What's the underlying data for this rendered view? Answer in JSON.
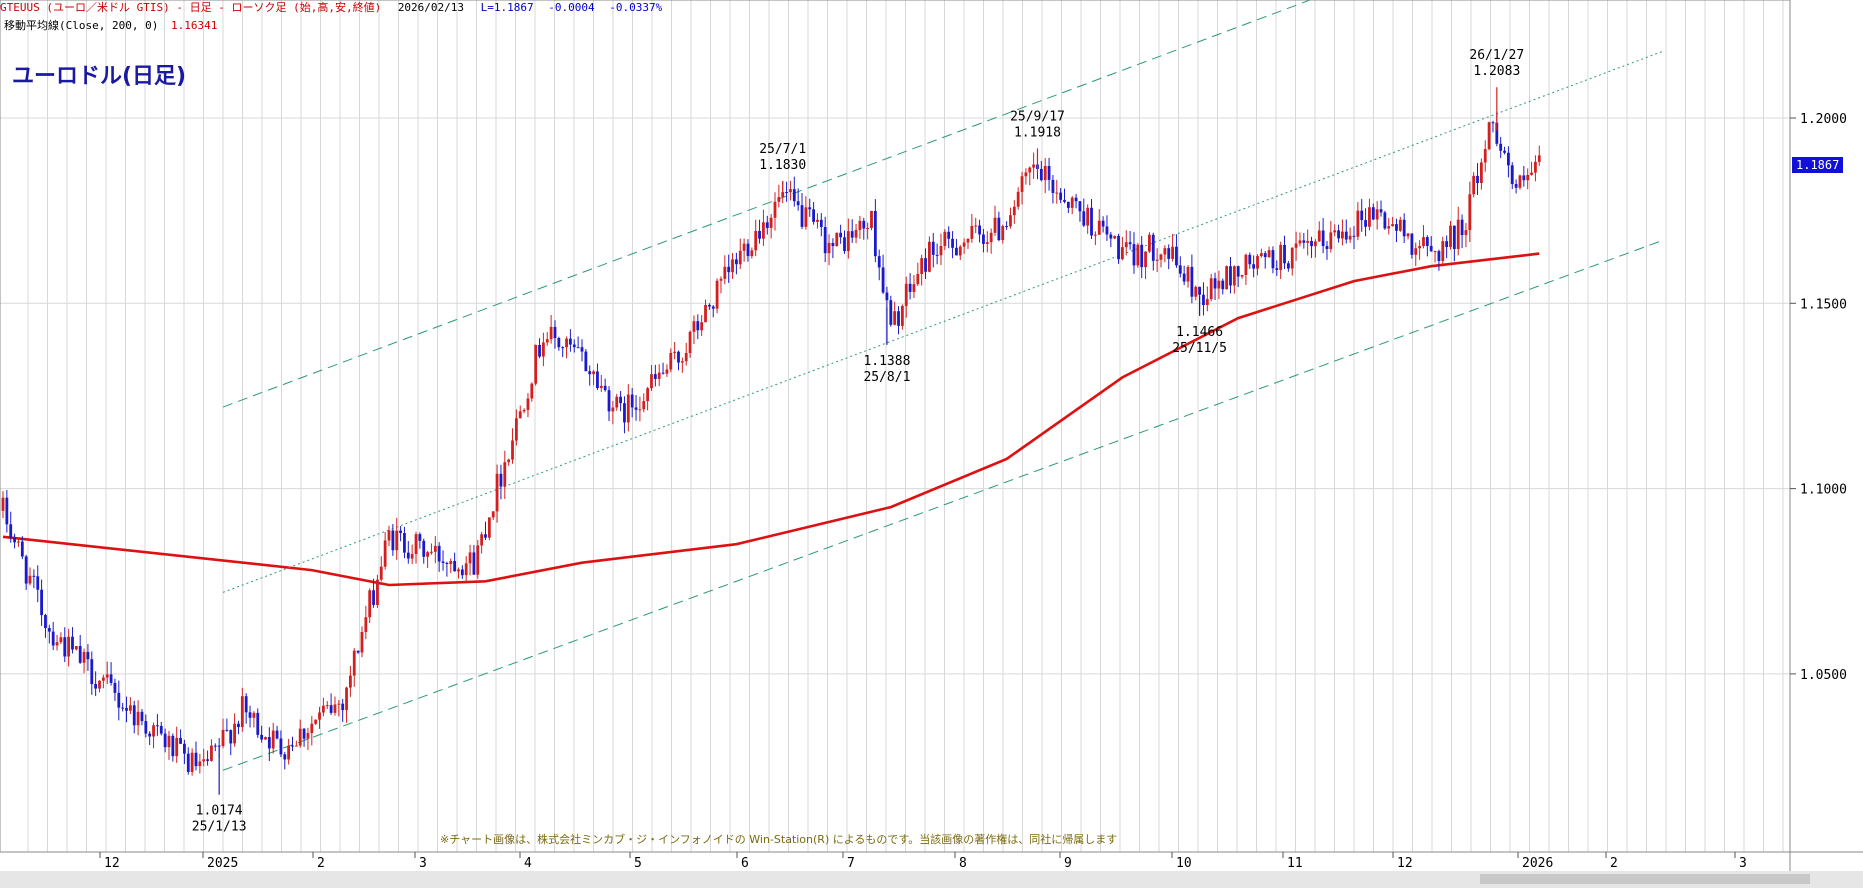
{
  "header": {
    "series_label": "GTEUUS (ユーロ／米ドル GTIS) - 日足 - ローソク足 (始,高,安,終値)",
    "date": "2026/02/13",
    "last": "L=1.1867",
    "change": "-0.0004",
    "change_pct": "-0.0337%"
  },
  "ma": {
    "label": "移動平均線(Close, 200, 0)",
    "value": "1.16341"
  },
  "title": "ユーロドル(日足)",
  "last_badge": "1.1867",
  "copyright": "※チャート画像は、株式会社ミンカブ・ジ・インフォノイドの Win-Station(R) によるものです。当該画像の著作権は、同社に帰属します",
  "colors": {
    "up": "#d22020",
    "down": "#1a1acc",
    "ma": "#dd1111",
    "channel": "#2a9a7a",
    "grid": "#d8d8d8"
  },
  "chart_data": {
    "type": "candlestick",
    "x_ticks": [
      "12",
      "2025",
      "2",
      "3",
      "4",
      "5",
      "6",
      "7",
      "8",
      "9",
      "10",
      "11",
      "12",
      "2026",
      "2",
      "3"
    ],
    "y_ticks": [
      "1.0500",
      "1.1000",
      "1.1500",
      "1.2000"
    ],
    "y_range": [
      1.005,
      1.225
    ],
    "anchors": [
      {
        "day": 0,
        "price": 1.094
      },
      {
        "day": 12,
        "price": 1.062
      },
      {
        "day": 30,
        "price": 1.043
      },
      {
        "day": 48,
        "price": 1.026
      },
      {
        "day": 52,
        "price": 1.024
      },
      {
        "day": 62,
        "price": 1.04
      },
      {
        "day": 72,
        "price": 1.03
      },
      {
        "day": 88,
        "price": 1.043
      },
      {
        "day": 100,
        "price": 1.087
      },
      {
        "day": 112,
        "price": 1.082
      },
      {
        "day": 122,
        "price": 1.08
      },
      {
        "day": 140,
        "price": 1.142
      },
      {
        "day": 150,
        "price": 1.135
      },
      {
        "day": 160,
        "price": 1.12
      },
      {
        "day": 175,
        "price": 1.135
      },
      {
        "day": 192,
        "price": 1.165
      },
      {
        "day": 202,
        "price": 1.179
      },
      {
        "day": 215,
        "price": 1.165
      },
      {
        "day": 225,
        "price": 1.172
      },
      {
        "day": 230,
        "price": 1.143
      },
      {
        "day": 240,
        "price": 1.164
      },
      {
        "day": 258,
        "price": 1.17
      },
      {
        "day": 267,
        "price": 1.186
      },
      {
        "day": 278,
        "price": 1.176
      },
      {
        "day": 292,
        "price": 1.162
      },
      {
        "day": 300,
        "price": 1.166
      },
      {
        "day": 310,
        "price": 1.152
      },
      {
        "day": 322,
        "price": 1.16
      },
      {
        "day": 338,
        "price": 1.164
      },
      {
        "day": 355,
        "price": 1.175
      },
      {
        "day": 370,
        "price": 1.163
      },
      {
        "day": 378,
        "price": 1.17
      },
      {
        "day": 386,
        "price": 1.2
      },
      {
        "day": 392,
        "price": 1.18
      },
      {
        "day": 398,
        "price": 1.1867
      }
    ],
    "moving_average_200": [
      {
        "day": 0,
        "price": 1.087
      },
      {
        "day": 80,
        "price": 1.078
      },
      {
        "day": 100,
        "price": 1.074
      },
      {
        "day": 125,
        "price": 1.075
      },
      {
        "day": 150,
        "price": 1.08
      },
      {
        "day": 190,
        "price": 1.085
      },
      {
        "day": 230,
        "price": 1.095
      },
      {
        "day": 260,
        "price": 1.108
      },
      {
        "day": 290,
        "price": 1.13
      },
      {
        "day": 320,
        "price": 1.146
      },
      {
        "day": 350,
        "price": 1.156
      },
      {
        "day": 370,
        "price": 1.16
      },
      {
        "day": 398,
        "price": 1.1634
      }
    ],
    "channel_lines": [
      {
        "style": "dashed",
        "from": {
          "day": 57,
          "price": 1.122
        },
        "to": {
          "day": 398,
          "price": 1.255
        }
      },
      {
        "style": "dotted",
        "from": {
          "day": 57,
          "price": 1.072
        },
        "to": {
          "day": 430,
          "price": 1.218
        }
      },
      {
        "style": "dashed",
        "from": {
          "day": 57,
          "price": 1.024
        },
        "to": {
          "day": 430,
          "price": 1.167
        }
      }
    ],
    "annotations": [
      {
        "date": "25/1/13",
        "price": "1.0174",
        "day": 56,
        "value": 1.0174,
        "position": "below"
      },
      {
        "date": "25/7/1",
        "price": "1.1830",
        "day": 202,
        "value": 1.183,
        "position": "above"
      },
      {
        "date": "25/8/1",
        "price": "1.1388",
        "day": 229,
        "value": 1.1388,
        "position": "below"
      },
      {
        "date": "25/9/17",
        "price": "1.1918",
        "day": 268,
        "value": 1.1918,
        "position": "above"
      },
      {
        "date": "25/11/5",
        "price": "1.1466",
        "day": 310,
        "value": 1.1466,
        "position": "below"
      },
      {
        "date": "26/1/27",
        "price": "1.2083",
        "day": 387,
        "value": 1.2083,
        "position": "above"
      }
    ]
  }
}
